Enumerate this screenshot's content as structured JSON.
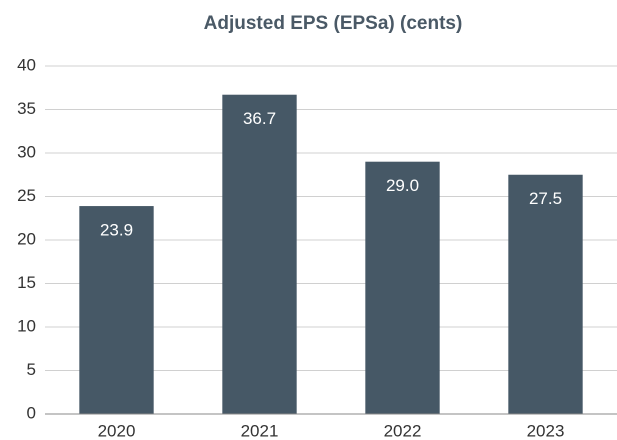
{
  "chart_data": {
    "type": "bar",
    "title": "Adjusted EPS (EPSa) (cents)",
    "categories": [
      "2020",
      "2021",
      "2022",
      "2023"
    ],
    "values": [
      23.9,
      36.7,
      29.0,
      27.5
    ],
    "value_labels": [
      "23.9",
      "36.7",
      "29.0",
      "27.5"
    ],
    "color": "#465866",
    "ylim": [
      0,
      40
    ],
    "yticks": [
      0,
      5,
      10,
      15,
      20,
      25,
      30,
      35,
      40
    ],
    "grid": true
  }
}
